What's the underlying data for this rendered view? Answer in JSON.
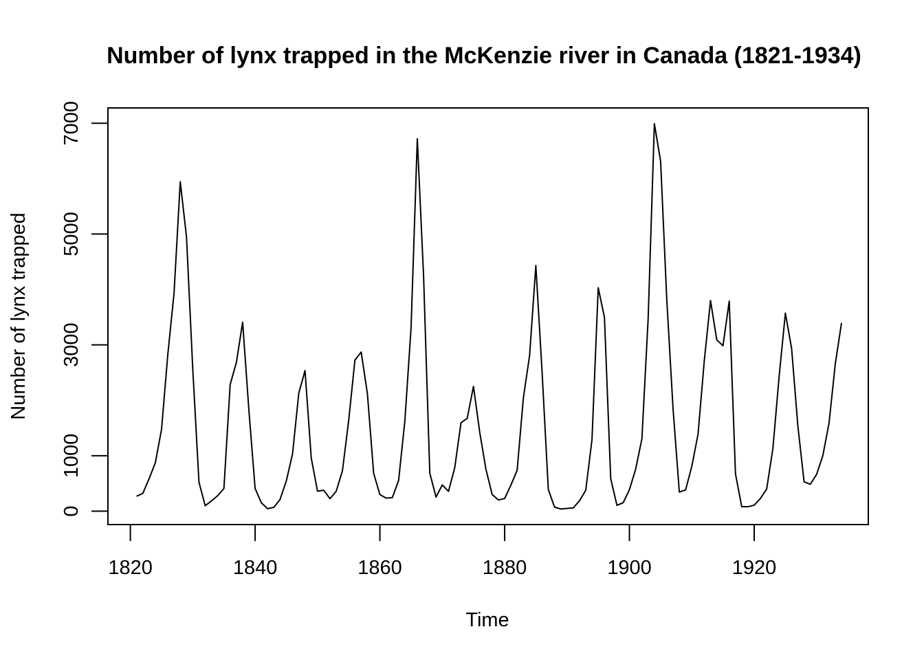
{
  "chart_data": {
    "type": "line",
    "title": "Number of lynx trapped in the McKenzie river in Canada (1821-1934)",
    "xlabel": "Time",
    "ylabel": "Number of lynx trapped",
    "xlim": [
      1821,
      1934
    ],
    "ylim": [
      0,
      7000
    ],
    "x_ticks": [
      1820,
      1840,
      1860,
      1880,
      1900,
      1920
    ],
    "y_ticks": [
      0,
      1000,
      3000,
      5000,
      7000
    ],
    "grid": false,
    "line_color": "#000000",
    "x_start": 1821,
    "series": [
      {
        "values": [
          269,
          321,
          585,
          871,
          1475,
          2821,
          3928,
          5943,
          4950,
          2577,
          523,
          98,
          184,
          279,
          409,
          2285,
          2685,
          3409,
          1824,
          409,
          151,
          45,
          68,
          213,
          546,
          1033,
          2129,
          2536,
          957,
          361,
          377,
          225,
          360,
          731,
          1638,
          2725,
          2871,
          2119,
          684,
          299,
          236,
          245,
          552,
          1623,
          3311,
          6721,
          4254,
          687,
          255,
          473,
          358,
          784,
          1594,
          1676,
          2251,
          1426,
          756,
          299,
          201,
          229,
          469,
          736,
          2042,
          2811,
          4431,
          2511,
          389,
          73,
          39,
          49,
          59,
          188,
          377,
          1292,
          4031,
          3495,
          587,
          105,
          153,
          387,
          758,
          1307,
          3465,
          6991,
          6313,
          3794,
          1836,
          345,
          382,
          808,
          1388,
          2713,
          3800,
          3091,
          2985,
          3790,
          674,
          81,
          80,
          108,
          229,
          399,
          1132,
          2432,
          3574,
          2935,
          1537,
          529,
          485,
          662,
          1000,
          1590,
          2657,
          3396
        ]
      }
    ]
  }
}
